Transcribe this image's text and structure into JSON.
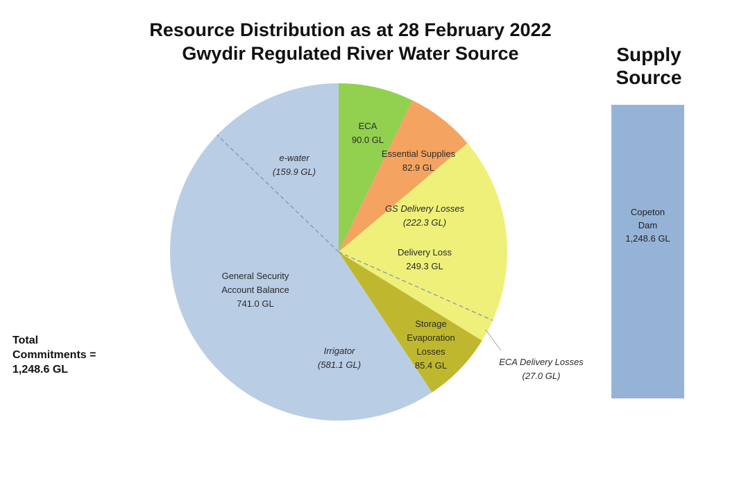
{
  "chart_data": {
    "type": "pie",
    "title": "Resource Distribution as at 28 February 2022",
    "subtitle": "Gwydir Regulated River Water Source",
    "unit": "GL",
    "slices": [
      {
        "label": "ECA",
        "value": 90.0,
        "value_text": "90.0 GL",
        "color": "#92d050"
      },
      {
        "label": "Essential Supplies",
        "value": 82.9,
        "value_text": "82.9 GL",
        "color": "#f4a460"
      },
      {
        "label": "Delivery Loss",
        "value": 249.3,
        "value_text": "249.3 GL",
        "color": "#eef07a"
      },
      {
        "label": "Storage Evaporation Losses",
        "value": 85.4,
        "value_text": "85.4 GL",
        "color": "#bfb82e"
      },
      {
        "label": "General Security Account Balance",
        "value": 741.0,
        "value_text": "741.0 GL",
        "color": "#b9cde5"
      }
    ],
    "sub_breakdowns": [
      {
        "label": "e-water",
        "value": 159.9,
        "value_text": "(159.9 GL)",
        "parent": "General Security Account Balance"
      },
      {
        "label": "Irrigator",
        "value": 581.1,
        "value_text": "(581.1 GL)",
        "parent": "General Security Account Balance"
      },
      {
        "label": "GS Delivery Losses",
        "value": 222.3,
        "value_text": "(222.3 GL)",
        "parent": "Delivery Loss"
      },
      {
        "label": "ECA Delivery Losses",
        "value": 27.0,
        "value_text": "(27.0 GL)",
        "parent": "Delivery Loss"
      }
    ],
    "total_text": [
      "Total",
      "Commitments =",
      "1,248.6 GL"
    ],
    "supply": {
      "title": [
        "Supply",
        "Source"
      ],
      "label": [
        "Copeton",
        "Dam",
        "1,248.6 GL"
      ],
      "value": 1248.6,
      "color": "#95b3d7"
    }
  }
}
